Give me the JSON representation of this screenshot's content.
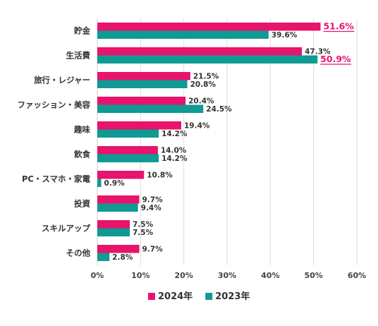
{
  "chart_data": {
    "type": "bar",
    "orientation": "horizontal",
    "categories": [
      "貯金",
      "生活費",
      "旅行・レジャー",
      "ファッション・美容",
      "趣味",
      "飲食",
      "PC・スマホ・家電",
      "投資",
      "スキルアップ",
      "その他"
    ],
    "series": [
      {
        "name": "2024年",
        "color": "#e8136b",
        "values": [
          51.6,
          47.3,
          21.5,
          20.4,
          19.4,
          14.0,
          10.8,
          9.7,
          7.5,
          9.7
        ],
        "labels": [
          "51.6%",
          "47.3%",
          "21.5%",
          "20.4%",
          "19.4%",
          "14.0%",
          "10.8%",
          "9.7%",
          "7.5%",
          "9.7%"
        ]
      },
      {
        "name": "2023年",
        "color": "#0f9a94",
        "values": [
          39.6,
          50.9,
          20.8,
          24.5,
          14.2,
          14.2,
          0.9,
          9.4,
          7.5,
          2.8
        ],
        "labels": [
          "39.6%",
          "50.9%",
          "20.8%",
          "24.5%",
          "14.2%",
          "14.2%",
          "0.9%",
          "9.4%",
          "7.5%",
          "2.8%"
        ]
      }
    ],
    "highlights": [
      {
        "series": 0,
        "index": 0
      },
      {
        "series": 1,
        "index": 1
      }
    ],
    "xlim": [
      0,
      60
    ],
    "xticks": [
      "0%",
      "10%",
      "20%",
      "30%",
      "40%",
      "50%",
      "60%"
    ],
    "grid": true,
    "legend_position": "bottom"
  }
}
